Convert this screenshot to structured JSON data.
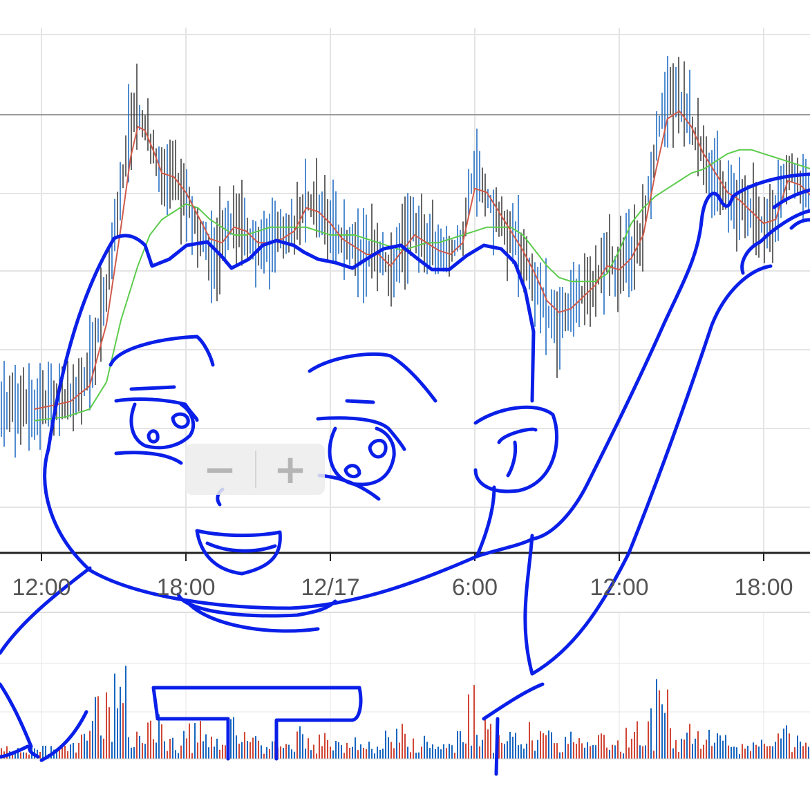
{
  "chart_data": {
    "type": "line",
    "subtype": "candlestick-with-moving-averages-and-volume",
    "x_tick_labels": [
      "12:00",
      "18:00",
      "12/17",
      "6:00",
      "12:00",
      "18:00"
    ],
    "x_ticks": [
      {
        "time": "12/16 12:00",
        "label": "12:00"
      },
      {
        "time": "12/16 18:00",
        "label": "18:00"
      },
      {
        "time": "12/17 00:00",
        "label": "12/17"
      },
      {
        "time": "12/17 06:00",
        "label": "6:00"
      },
      {
        "time": "12/17 12:00",
        "label": "12:00"
      },
      {
        "time": "12/17 18:00",
        "label": "18:00"
      }
    ],
    "x_range_hours": [
      -12.35,
      9.7
    ],
    "y_range_pct": [
      0,
      100
    ],
    "y_axis_labels_visible": false,
    "grid": true,
    "legend": "none",
    "series": [
      {
        "kind": "price",
        "x": [
          -12.3,
          -11.5,
          -10.8,
          -10.0,
          -9.3,
          -8.7,
          -8.3,
          -8.0,
          -7.7,
          -7.3,
          -7.0,
          -6.5,
          -6.0,
          -5.5,
          -5.0,
          -4.5,
          -4.0,
          -3.5,
          -3.0,
          -2.5,
          -2.0,
          -1.5,
          -1.0,
          -0.5,
          0.0,
          0.5,
          1.0,
          1.5,
          2.0,
          2.5,
          3.0,
          3.5,
          4.0,
          4.5,
          5.0,
          5.5,
          6.0,
          6.5,
          7.0,
          7.5,
          8.0,
          8.5,
          9.0,
          9.5,
          10.0,
          10.5,
          11.0,
          11.5,
          12.0,
          12.5,
          13.0,
          13.5,
          14.0,
          14.5,
          15.0,
          15.5,
          16.0,
          16.5,
          17.0,
          17.5,
          18.0,
          18.5,
          19.0,
          19.5,
          20.0,
          20.5,
          21.0,
          21.5
        ],
        "y": [
          6,
          7,
          8,
          15,
          36,
          62,
          78,
          83,
          78,
          70,
          64,
          66,
          60,
          52,
          45,
          48,
          55,
          50,
          47,
          48,
          50,
          52,
          60,
          56,
          52,
          48,
          46,
          44,
          45,
          40,
          48,
          52,
          48,
          46,
          45,
          50,
          68,
          60,
          54,
          50,
          45,
          38,
          30,
          28,
          32,
          35,
          38,
          44,
          40,
          45,
          52,
          73,
          88,
          85,
          78,
          70,
          64,
          60,
          58,
          55,
          52,
          55,
          68,
          62,
          60,
          58,
          56,
          55
        ]
      },
      {
        "kind": "ma-short",
        "x": [
          -12.3,
          -11.5,
          -10.8,
          -10.0,
          -9.3,
          -8.7,
          -8.3,
          -8.0,
          -7.7,
          -7.3,
          -7.0,
          -6.5,
          -6.0,
          -5.5,
          -5.0,
          -4.5,
          -4.0,
          -3.5,
          -3.0,
          -2.5,
          -2.0,
          -1.5,
          -1.0,
          -0.5,
          0.0,
          0.5,
          1.0,
          1.5,
          2.0,
          2.5,
          3.0,
          3.5,
          4.0,
          4.5,
          5.0,
          5.5,
          6.0,
          6.5,
          7.0,
          7.5,
          8.0,
          8.5,
          9.0,
          9.5,
          10.0,
          10.5,
          11.0,
          11.5,
          12.0,
          12.5,
          13.0,
          13.5,
          14.0,
          14.5,
          15.0,
          15.5,
          16.0,
          16.5,
          17.0,
          17.5,
          18.0,
          18.5,
          19.0,
          19.5,
          20.0,
          20.5,
          21.0,
          21.5
        ],
        "y": [
          5,
          6,
          7,
          11,
          27,
          52,
          70,
          78,
          77,
          71,
          66,
          65,
          61,
          55,
          49,
          48,
          52,
          51,
          48,
          48,
          49,
          51,
          57,
          56,
          53,
          49,
          47,
          45,
          45,
          42,
          46,
          50,
          48,
          46,
          45,
          48,
          62,
          61,
          56,
          51,
          46,
          40,
          33,
          30,
          31,
          34,
          37,
          42,
          41,
          44,
          50,
          66,
          80,
          82,
          78,
          71,
          66,
          61,
          59,
          56,
          53,
          54,
          64,
          63,
          60,
          58,
          56,
          55
        ]
      },
      {
        "kind": "ma-long",
        "x": [
          -12.3,
          -11.0,
          -10.0,
          -9.3,
          -8.7,
          -8.0,
          -7.5,
          -7.0,
          -6.5,
          -6.0,
          -5.5,
          -5.0,
          -4.5,
          -4.0,
          -3.5,
          -3.0,
          -2.5,
          -2.0,
          -1.5,
          -1.0,
          -0.5,
          0.0,
          0.5,
          1.0,
          1.5,
          2.0,
          2.5,
          3.0,
          3.5,
          4.0,
          4.5,
          5.0,
          5.5,
          6.0,
          6.5,
          7.0,
          7.5,
          8.0,
          8.5,
          9.0,
          9.5,
          10.0,
          10.5,
          11.0,
          11.5,
          12.0,
          12.5,
          13.0,
          13.5,
          14.0,
          14.5,
          15.0,
          15.5,
          16.0,
          16.5,
          17.0,
          17.5,
          18.0,
          18.5,
          19.0,
          19.5,
          20.0,
          20.5,
          21.0,
          21.5
        ],
        "y": [
          2,
          3,
          5,
          12,
          28,
          42,
          50,
          54,
          56,
          58,
          57,
          54,
          52,
          50,
          50,
          51,
          52,
          52,
          52,
          52,
          51,
          50,
          50,
          50,
          49,
          48,
          47,
          46,
          47,
          48,
          48,
          49,
          50,
          51,
          52,
          52,
          52,
          50,
          46,
          42,
          39,
          38,
          38,
          38,
          40,
          46,
          53,
          57,
          60,
          62,
          64,
          66,
          67,
          69,
          71,
          72,
          72,
          71,
          70,
          69,
          68,
          67,
          67,
          66,
          66
        ]
      }
    ]
  },
  "zoom": {
    "out_label": "−",
    "in_label": "+"
  },
  "colors": {
    "grid": "#e4e4e4",
    "reference_line": "#9a9a9a",
    "axis": "#222222",
    "up": "#1565c0",
    "down": "#d04535",
    "ma_short": "#d05a4a",
    "ma_long": "#5ccc4c",
    "doodle": "#0a1fe8"
  }
}
